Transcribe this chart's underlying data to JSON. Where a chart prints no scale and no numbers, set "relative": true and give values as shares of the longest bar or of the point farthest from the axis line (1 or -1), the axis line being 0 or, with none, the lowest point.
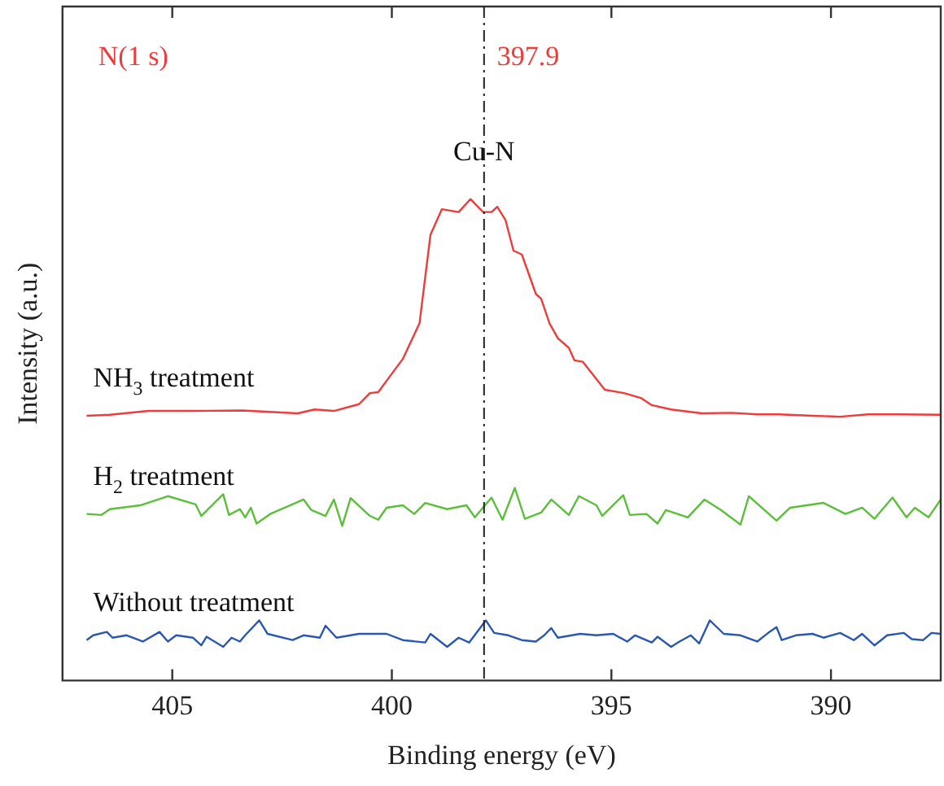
{
  "chart_data": {
    "type": "line",
    "xlabel": "Binding energy (eV)",
    "ylabel": "Intensity (a.u.)",
    "relative": true,
    "xlim": [
      407.5,
      387.5
    ],
    "xticks": [
      405,
      400,
      395,
      390
    ],
    "grid": false,
    "legend": false,
    "marker": "none",
    "line_style": "solid",
    "annotations": [
      "N(1 s)",
      {
        "text": "Cu-N",
        "x": 397.9,
        "y": 1.08
      }
    ],
    "ref_lines": [
      {
        "axis": "x",
        "value": 397.9,
        "label": "397.9",
        "color": "#222222",
        "line_style": "dashed"
      }
    ],
    "series": [
      {
        "name": "NH$_{3}$ treatment",
        "color": "#ee3b3b",
        "x": [
          406.95,
          406.42,
          405.54,
          404.53,
          403.4,
          402.14,
          401.76,
          401.32,
          400.75,
          400.5,
          400.31,
          400.06,
          399.75,
          399.37,
          399.12,
          398.86,
          398.48,
          398.21,
          397.92,
          397.73,
          397.6,
          397.41,
          397.23,
          397.04,
          396.72,
          396.6,
          396.41,
          396.22,
          395.97,
          395.84,
          395.65,
          395.46,
          395.15,
          394.71,
          394.33,
          394.08,
          393.64,
          392.94,
          392.25,
          391.68,
          391.18,
          390.42,
          389.79,
          389.16,
          388.41,
          387.5
        ],
        "values": [
          0.55,
          0.552,
          0.56,
          0.56,
          0.561,
          0.555,
          0.563,
          0.56,
          0.574,
          0.597,
          0.599,
          0.63,
          0.668,
          0.742,
          0.926,
          0.979,
          0.973,
          1,
          0.973,
          0.973,
          0.984,
          0.956,
          0.893,
          0.885,
          0.803,
          0.793,
          0.742,
          0.711,
          0.691,
          0.665,
          0.662,
          0.64,
          0.604,
          0.597,
          0.587,
          0.572,
          0.563,
          0.555,
          0.556,
          0.553,
          0.553,
          0.55,
          0.548,
          0.553,
          0.553,
          0.552
        ]
      },
      {
        "name": "H$_{2}$ treatment",
        "color": "#5bbf3a",
        "x": [
          406.95,
          406.61,
          406.42,
          405.73,
          405.1,
          404.47,
          404.34,
          403.84,
          403.71,
          403.46,
          403.34,
          403.21,
          403.08,
          402.77,
          402.01,
          401.83,
          401.51,
          401.32,
          401.13,
          400.94,
          400.5,
          400.31,
          400.12,
          399.75,
          399.49,
          399.24,
          398.74,
          398.3,
          398.11,
          397.73,
          397.48,
          397.2,
          396.97,
          396.6,
          396.37,
          395.97,
          395.74,
          395.34,
          395.21,
          394.73,
          394.58,
          394.2,
          393.95,
          393.76,
          393.26,
          392.88,
          392.5,
          392.06,
          391.87,
          391.24,
          390.93,
          390.17,
          389.67,
          389.29,
          389.01,
          388.6,
          388.28,
          388.09,
          387.78,
          387.5
        ],
        "values": [
          0.346,
          0.344,
          0.356,
          0.364,
          0.383,
          0.366,
          0.342,
          0.387,
          0.344,
          0.356,
          0.339,
          0.359,
          0.326,
          0.346,
          0.376,
          0.354,
          0.342,
          0.376,
          0.321,
          0.379,
          0.342,
          0.334,
          0.359,
          0.364,
          0.346,
          0.369,
          0.356,
          0.364,
          0.339,
          0.38,
          0.334,
          0.4,
          0.336,
          0.349,
          0.376,
          0.344,
          0.383,
          0.364,
          0.342,
          0.385,
          0.344,
          0.346,
          0.326,
          0.354,
          0.339,
          0.376,
          0.354,
          0.324,
          0.383,
          0.332,
          0.359,
          0.369,
          0.346,
          0.359,
          0.336,
          0.38,
          0.339,
          0.359,
          0.339,
          0.376
        ]
      },
      {
        "name": "Without treatment",
        "color": "#2a58b0",
        "x": [
          406.95,
          406.8,
          406.49,
          406.36,
          406.04,
          405.67,
          405.29,
          405.1,
          404.91,
          404.53,
          404.34,
          404.22,
          403.84,
          403.65,
          403.46,
          403.34,
          403.02,
          402.83,
          402.26,
          402.01,
          401.64,
          401.51,
          401.26,
          400.75,
          400.12,
          399.75,
          399.24,
          399.12,
          398.74,
          398.48,
          398.24,
          397.86,
          397.67,
          397.35,
          397.04,
          396.72,
          396.53,
          396.37,
          396.22,
          395.71,
          395.34,
          394.96,
          394.64,
          394.46,
          394.08,
          393.95,
          393.64,
          393.45,
          393.19,
          393.0,
          392.76,
          392.44,
          392.06,
          391.68,
          391.43,
          391.24,
          391.12,
          390.8,
          390.42,
          390.17,
          389.79,
          389.48,
          389.29,
          389.01,
          388.72,
          388.34,
          388.16,
          387.9,
          387.71,
          387.5
        ],
        "values": [
          0.084,
          0.094,
          0.101,
          0.089,
          0.094,
          0.081,
          0.101,
          0.081,
          0.094,
          0.089,
          0.073,
          0.091,
          0.07,
          0.089,
          0.081,
          0.094,
          0.125,
          0.097,
          0.084,
          0.094,
          0.089,
          0.114,
          0.089,
          0.097,
          0.097,
          0.084,
          0.079,
          0.097,
          0.07,
          0.089,
          0.079,
          0.125,
          0.099,
          0.094,
          0.084,
          0.081,
          0.094,
          0.109,
          0.089,
          0.097,
          0.094,
          0.097,
          0.081,
          0.094,
          0.079,
          0.091,
          0.07,
          0.081,
          0.094,
          0.077,
          0.125,
          0.097,
          0.094,
          0.081,
          0.099,
          0.111,
          0.084,
          0.094,
          0.097,
          0.089,
          0.099,
          0.084,
          0.097,
          0.073,
          0.094,
          0.099,
          0.086,
          0.084,
          0.099,
          0.097
        ]
      }
    ]
  }
}
